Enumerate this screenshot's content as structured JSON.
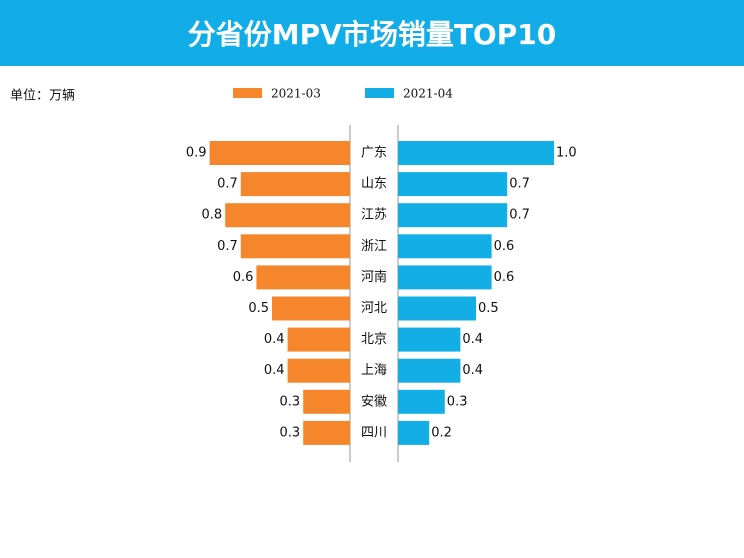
{
  "chart_data": {
    "type": "bar",
    "title": "分省份MPV市场销量TOP10",
    "unit_label": "单位：万辆",
    "categories": [
      "广东",
      "山东",
      "江苏",
      "浙江",
      "河南",
      "河北",
      "北京",
      "上海",
      "安徽",
      "四川"
    ],
    "series": [
      {
        "name": "2021-03",
        "color": "#f5862b",
        "values": [
          0.9,
          0.7,
          0.8,
          0.7,
          0.6,
          0.5,
          0.4,
          0.4,
          0.3,
          0.3
        ]
      },
      {
        "name": "2021-04",
        "color": "#14aee6",
        "values": [
          1.0,
          0.7,
          0.7,
          0.6,
          0.6,
          0.5,
          0.4,
          0.4,
          0.3,
          0.2
        ],
        "value_labels": [
          "1.0",
          "0.7",
          "0.7",
          "0.6",
          "0.6",
          "0.5",
          "0.4",
          "0.4",
          "0.3",
          "0.2"
        ]
      }
    ]
  }
}
